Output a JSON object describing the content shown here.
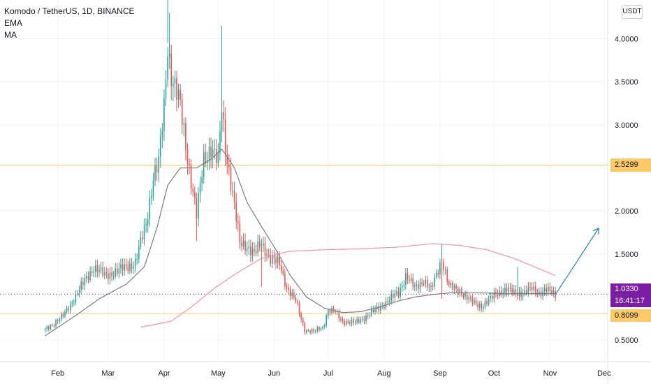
{
  "chart_data": {
    "type": "candlestick",
    "title": "Komodo / TetherUS, 1D, BINANCE",
    "indicators": [
      "EMA",
      "MA"
    ],
    "currency": "USDT",
    "ylim": [
      0.25,
      4.45
    ],
    "yticks": [
      "0.5000",
      "1.0000",
      "1.5000",
      "2.0000",
      "2.5000",
      "3.0000",
      "3.5000",
      "4.0000"
    ],
    "x_domain": [
      -25,
      312
    ],
    "xticks": [
      {
        "label": "Feb",
        "day": 7
      },
      {
        "label": "Mar",
        "day": 35
      },
      {
        "label": "Apr",
        "day": 66
      },
      {
        "label": "May",
        "day": 96
      },
      {
        "label": "Jun",
        "day": 127
      },
      {
        "label": "Jul",
        "day": 157
      },
      {
        "label": "Aug",
        "day": 188
      },
      {
        "label": "Sep",
        "day": 219
      },
      {
        "label": "Oct",
        "day": 249
      },
      {
        "label": "Nov",
        "day": 280
      },
      {
        "label": "Dec",
        "day": 310
      }
    ],
    "closes_anchor": [
      [
        0,
        0.62
      ],
      [
        10,
        0.78
      ],
      [
        20,
        1.12
      ],
      [
        27,
        1.35
      ],
      [
        33,
        1.25
      ],
      [
        40,
        1.3
      ],
      [
        50,
        1.4
      ],
      [
        56,
        1.85
      ],
      [
        60,
        2.4
      ],
      [
        63,
        2.55
      ],
      [
        66,
        3.2
      ],
      [
        68,
        3.95
      ],
      [
        70,
        3.6
      ],
      [
        75,
        3.2
      ],
      [
        80,
        2.5
      ],
      [
        84,
        1.95
      ],
      [
        88,
        2.6
      ],
      [
        92,
        2.75
      ],
      [
        96,
        2.55
      ],
      [
        98,
        3.2
      ],
      [
        100,
        2.75
      ],
      [
        104,
        2.2
      ],
      [
        108,
        1.62
      ],
      [
        112,
        1.6
      ],
      [
        116,
        1.5
      ],
      [
        120,
        1.62
      ],
      [
        125,
        1.45
      ],
      [
        130,
        1.38
      ],
      [
        134,
        1.12
      ],
      [
        139,
        0.95
      ],
      [
        144,
        0.62
      ],
      [
        149,
        0.6
      ],
      [
        154,
        0.65
      ],
      [
        157,
        0.85
      ],
      [
        161,
        0.82
      ],
      [
        165,
        0.72
      ],
      [
        172,
        0.7
      ],
      [
        180,
        0.8
      ],
      [
        188,
        0.92
      ],
      [
        196,
        1.05
      ],
      [
        200,
        1.25
      ],
      [
        205,
        1.1
      ],
      [
        210,
        1.2
      ],
      [
        214,
        1.08
      ],
      [
        218,
        1.32
      ],
      [
        220,
        1.45
      ],
      [
        224,
        1.12
      ],
      [
        230,
        1.08
      ],
      [
        236,
        0.95
      ],
      [
        242,
        0.9
      ],
      [
        246,
        0.95
      ],
      [
        250,
        1.05
      ],
      [
        256,
        1.08
      ],
      [
        260,
        1.05
      ],
      [
        266,
        1.05
      ],
      [
        270,
        1.1
      ],
      [
        274,
        1.05
      ],
      [
        278,
        1.08
      ],
      [
        283,
        1.03
      ]
    ],
    "ema_anchor": [
      [
        0,
        0.55
      ],
      [
        18,
        0.8
      ],
      [
        30,
        0.98
      ],
      [
        45,
        1.15
      ],
      [
        55,
        1.35
      ],
      [
        62,
        1.8
      ],
      [
        68,
        2.3
      ],
      [
        75,
        2.5
      ],
      [
        84,
        2.5
      ],
      [
        92,
        2.6
      ],
      [
        98,
        2.72
      ],
      [
        105,
        2.5
      ],
      [
        112,
        2.1
      ],
      [
        120,
        1.82
      ],
      [
        128,
        1.55
      ],
      [
        136,
        1.25
      ],
      [
        145,
        1.0
      ],
      [
        155,
        0.87
      ],
      [
        165,
        0.82
      ],
      [
        175,
        0.83
      ],
      [
        185,
        0.88
      ],
      [
        195,
        0.95
      ],
      [
        205,
        1.0
      ],
      [
        215,
        1.03
      ],
      [
        225,
        1.05
      ],
      [
        240,
        1.05
      ],
      [
        255,
        1.04
      ],
      [
        270,
        1.04
      ],
      [
        283,
        1.04
      ]
    ],
    "ma_anchor": [
      [
        53,
        0.65
      ],
      [
        70,
        0.72
      ],
      [
        82,
        0.9
      ],
      [
        95,
        1.12
      ],
      [
        108,
        1.3
      ],
      [
        120,
        1.45
      ],
      [
        135,
        1.53
      ],
      [
        155,
        1.55
      ],
      [
        175,
        1.56
      ],
      [
        195,
        1.58
      ],
      [
        215,
        1.62
      ],
      [
        230,
        1.6
      ],
      [
        245,
        1.55
      ],
      [
        260,
        1.45
      ],
      [
        275,
        1.32
      ],
      [
        283,
        1.25
      ]
    ],
    "spikes": [
      {
        "day": 68,
        "high": 4.45
      },
      {
        "day": 69,
        "high": 4.3
      },
      {
        "day": 98,
        "high": 4.15
      },
      {
        "day": 84,
        "low": 1.65
      },
      {
        "day": 120,
        "low": 1.12
      },
      {
        "day": 220,
        "high": 1.62
      },
      {
        "day": 220,
        "low": 0.98
      },
      {
        "day": 262,
        "high": 1.35
      }
    ],
    "resistance": {
      "value": 2.5299,
      "label": "2.5299"
    },
    "support": {
      "value": 0.8099,
      "label": "0.8099"
    },
    "last_price": {
      "value": 1.033,
      "label": "1.0330",
      "countdown": "16:41:17"
    },
    "projection": {
      "from": [
        283,
        1.03
      ],
      "to": [
        307,
        1.8
      ]
    },
    "colors": {
      "up": "#26a69a",
      "down": "#ef5350",
      "ema": "#787b86",
      "ma": "#f48fb1",
      "level": "#fcc969",
      "projection": "#1e88a8",
      "price": "#7b1fa2",
      "grid": "#f0f3fa"
    }
  }
}
